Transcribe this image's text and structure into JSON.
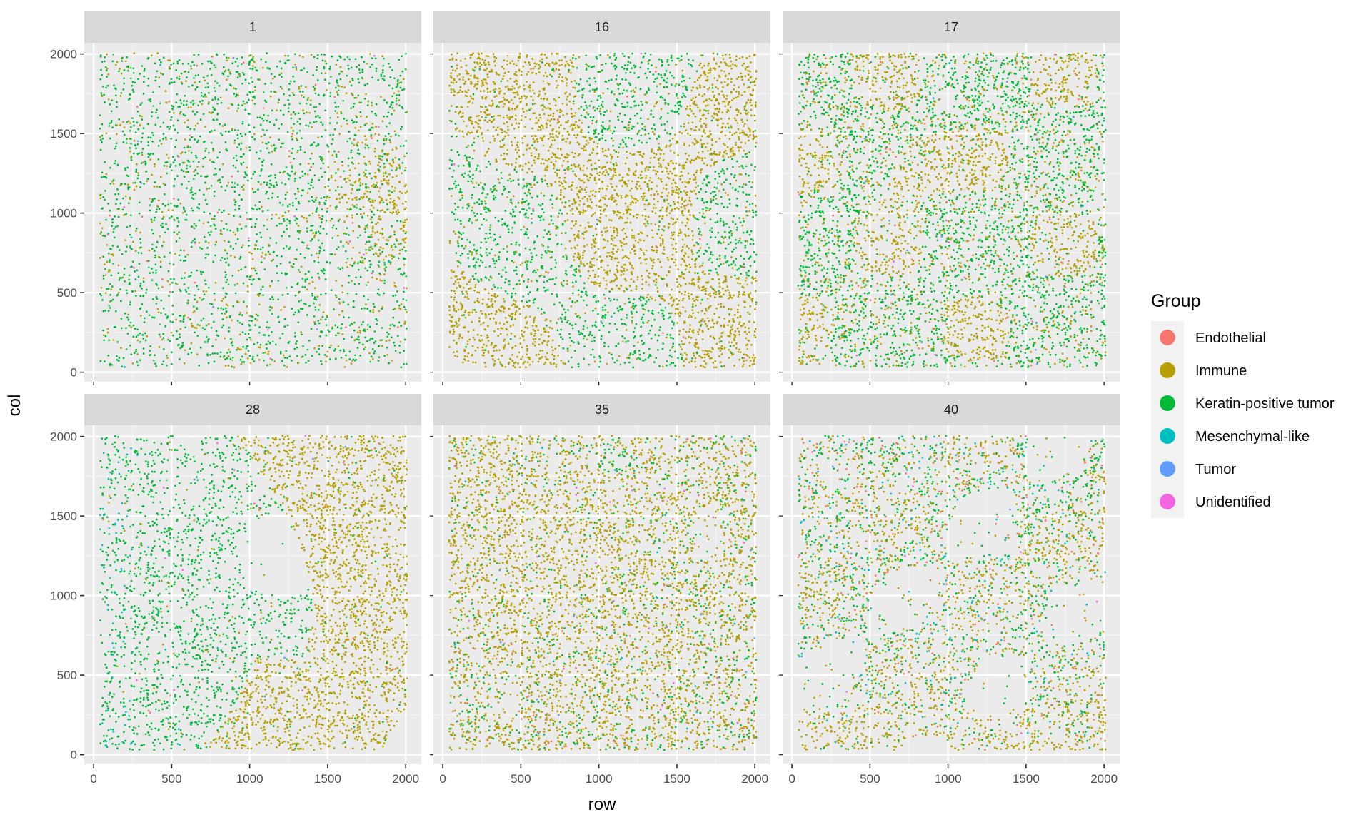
{
  "chart_data": {
    "type": "scatter",
    "xlabel": "row",
    "ylabel": "col",
    "xlim": [
      0,
      2000
    ],
    "ylim": [
      0,
      2000
    ],
    "x_ticks": [
      0,
      500,
      1000,
      1500,
      2000
    ],
    "y_ticks": [
      0,
      500,
      1000,
      1500,
      2000
    ],
    "x_tick_labels": [
      "0",
      "500",
      "1000",
      "1500",
      "2000"
    ],
    "y_tick_labels": [
      "0",
      "500",
      "1000",
      "1500",
      "2000"
    ],
    "grid": true,
    "facets": [
      "1",
      "16",
      "17",
      "28",
      "35",
      "40"
    ],
    "legend": {
      "title": "Group",
      "position": "right",
      "entries": [
        {
          "label": "Endothelial",
          "color": "#F8766D"
        },
        {
          "label": "Immune",
          "color": "#B79F00"
        },
        {
          "label": "Keratin-positive tumor",
          "color": "#00BA38"
        },
        {
          "label": "Mesenchymal-like",
          "color": "#00BFC4"
        },
        {
          "label": "Tumor",
          "color": "#619CFF"
        },
        {
          "label": "Unidentified",
          "color": "#F564E3"
        }
      ]
    },
    "colors": {
      "panel_background": "#EBEBEB",
      "grid_major": "#FFFFFF",
      "strip_background": "#D9D9D9"
    }
  }
}
